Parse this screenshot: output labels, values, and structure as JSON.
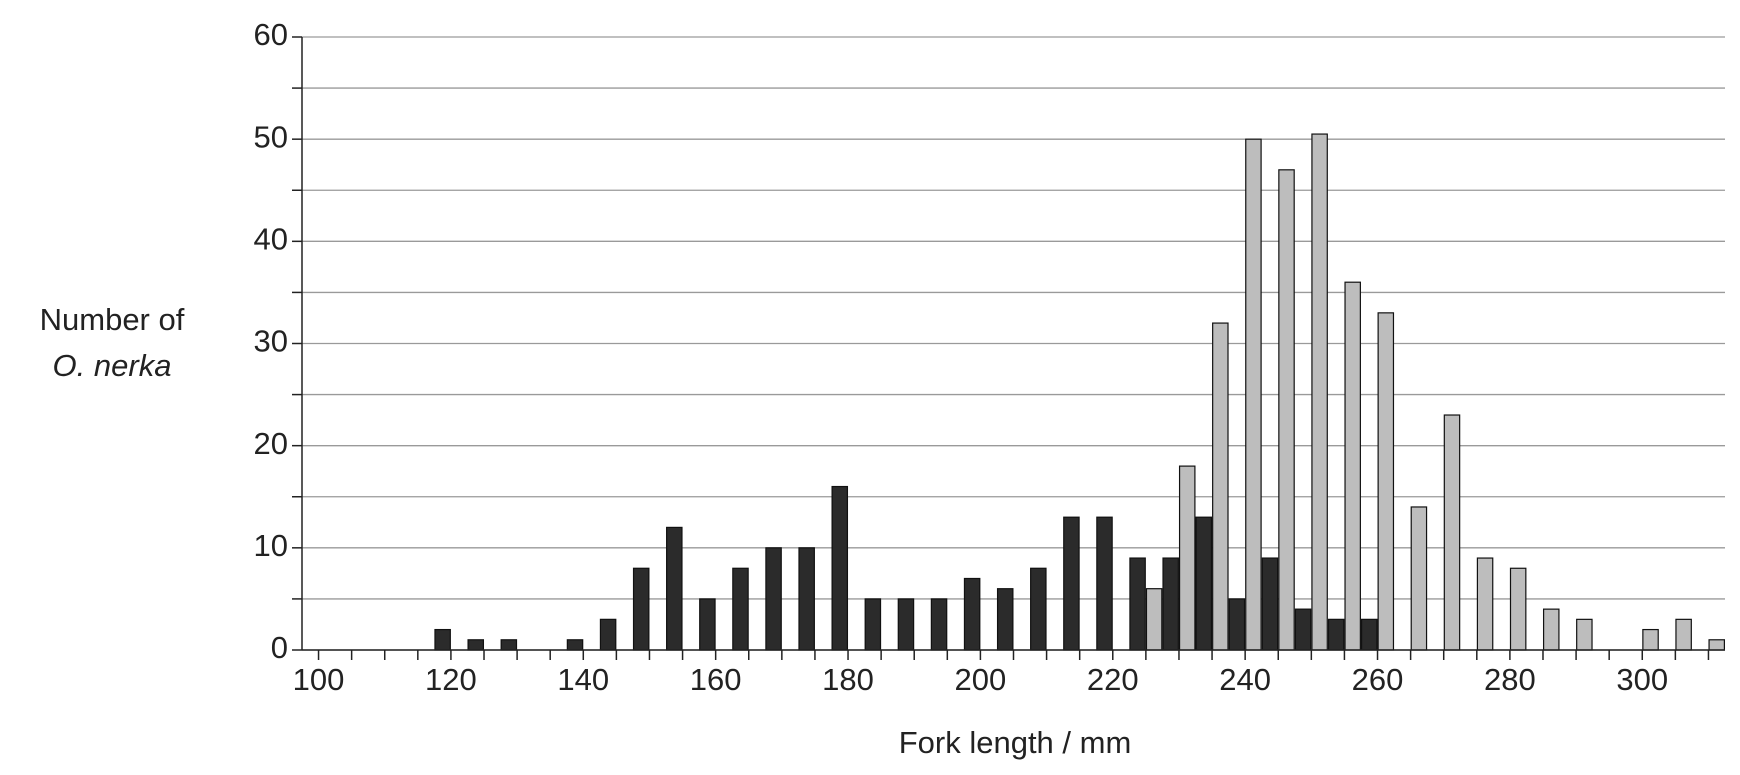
{
  "chart_data": {
    "type": "bar",
    "xlabel": "Fork length / mm",
    "ylabel": [
      "Number of",
      "O. nerka"
    ],
    "x": [
      100,
      105,
      110,
      115,
      120,
      125,
      130,
      135,
      140,
      145,
      150,
      155,
      160,
      165,
      170,
      175,
      180,
      185,
      190,
      195,
      200,
      205,
      210,
      215,
      220,
      225,
      230,
      235,
      240,
      245,
      250,
      255,
      260,
      265,
      270,
      275,
      280,
      285,
      290,
      295,
      300,
      305,
      310
    ],
    "series": [
      {
        "color": "#2b2b2b",
        "values": [
          0,
          0,
          0,
          0,
          2,
          1,
          1,
          0,
          1,
          3,
          8,
          12,
          5,
          8,
          10,
          10,
          16,
          5,
          5,
          5,
          7,
          6,
          8,
          13,
          13,
          9,
          9,
          13,
          5,
          9,
          4,
          3,
          3,
          0,
          0,
          0,
          0,
          0,
          0,
          0,
          0,
          0,
          0
        ]
      },
      {
        "color": "#bdbdbd",
        "values": [
          0,
          0,
          0,
          0,
          0,
          0,
          0,
          0,
          0,
          0,
          0,
          0,
          0,
          0,
          0,
          0,
          0,
          0,
          0,
          0,
          0,
          0,
          0,
          0,
          0,
          6,
          18,
          32,
          50,
          47,
          50.5,
          36,
          33,
          14,
          23,
          9,
          8,
          4,
          3,
          0,
          2,
          3,
          1
        ]
      }
    ],
    "xlim": [
      97.5,
      312.5
    ],
    "xticks": [
      100,
      120,
      140,
      160,
      180,
      200,
      220,
      240,
      260,
      280,
      300
    ],
    "xminorticks": [
      105,
      110,
      115,
      125,
      130,
      135,
      145,
      150,
      155,
      165,
      170,
      175,
      185,
      190,
      195,
      205,
      210,
      215,
      225,
      230,
      235,
      245,
      250,
      255,
      265,
      270,
      275,
      285,
      290,
      295,
      305,
      310
    ],
    "ylim": [
      0,
      60
    ],
    "yticks": [
      0,
      10,
      20,
      30,
      40,
      50,
      60
    ],
    "yminorticks": [
      5,
      15,
      25,
      35,
      45,
      55
    ],
    "grid": true
  }
}
